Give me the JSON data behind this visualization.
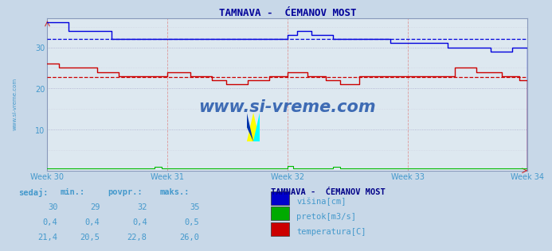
{
  "title": "TAMNAVA -  ĆEMANOV MOST",
  "fig_bg_color": "#c8d8e8",
  "plot_bg_color": "#dde8f0",
  "xlim": [
    0,
    336
  ],
  "ylim": [
    0,
    37
  ],
  "yticks": [
    10,
    20,
    30
  ],
  "xtick_labels": [
    "Week 30",
    "Week 31",
    "Week 32",
    "Week 33",
    "Week 34"
  ],
  "xtick_positions": [
    0,
    84,
    168,
    252,
    336
  ],
  "grid_h_color": "#c8b8b8",
  "grid_v_color": "#e8b8b8",
  "avg_blue_y": 32,
  "avg_red_y": 22.8,
  "watermark": "www.si-vreme.com",
  "watermark_color": "#2255aa",
  "table_headers": [
    "sedaj:",
    "min.:",
    "povpr.:",
    "maks.:"
  ],
  "table_row1": [
    "30",
    "29",
    "32",
    "35"
  ],
  "table_row2": [
    "0,4",
    "0,4",
    "0,4",
    "0,5"
  ],
  "table_row3": [
    "21,4",
    "20,5",
    "22,8",
    "26,0"
  ],
  "legend_title": "TAMNAVA -  ĆEMANOV MOST",
  "legend_items": [
    "višina[cm]",
    "pretok[m3/s]",
    "temperatura[C]"
  ],
  "legend_colors": [
    "#0000cc",
    "#00aa00",
    "#cc0000"
  ],
  "blue_line_color": "#0000dd",
  "green_line_color": "#00bb00",
  "red_line_color": "#cc0000",
  "text_color": "#4499cc",
  "title_color": "#000099",
  "left_label": "www.si-vreme.com"
}
